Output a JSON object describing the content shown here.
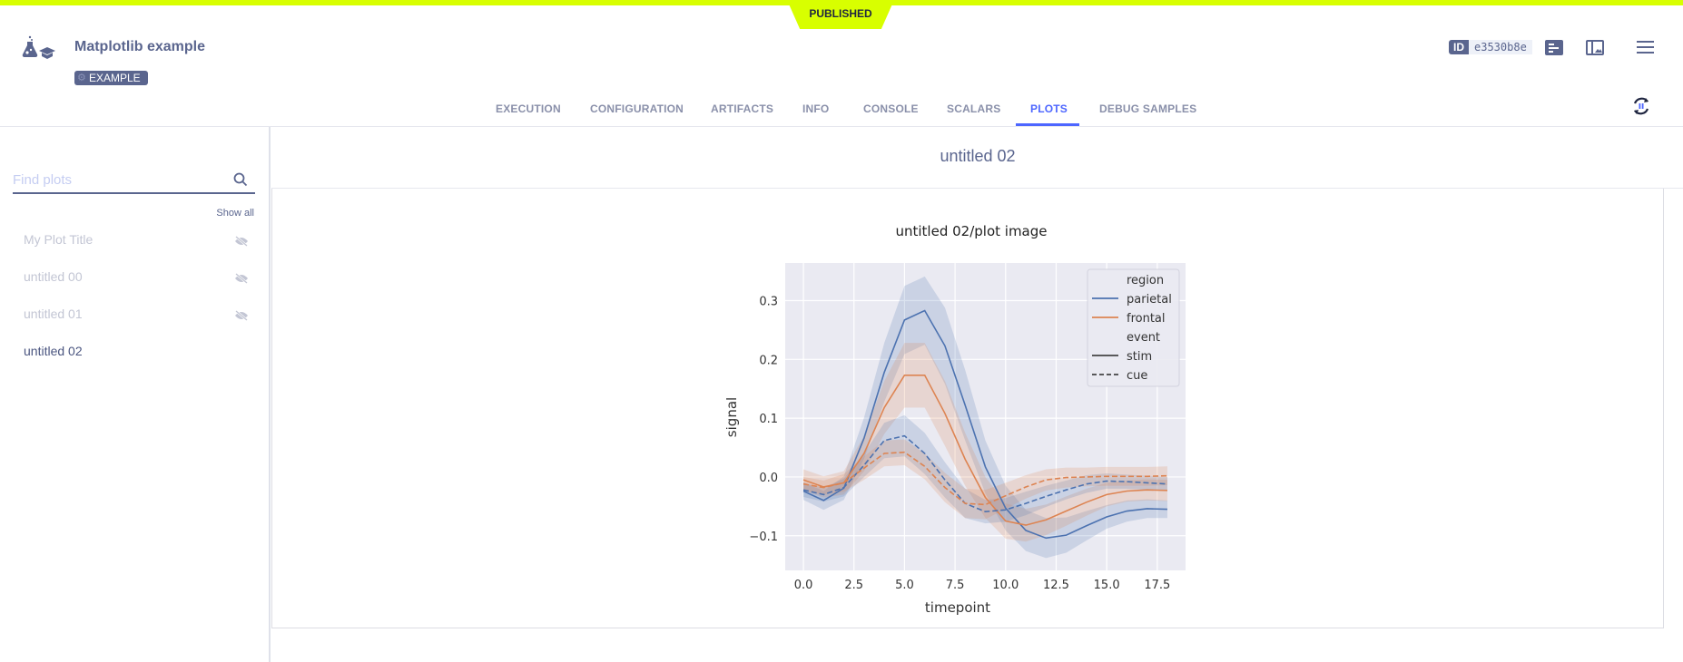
{
  "status_banner": "PUBLISHED",
  "header": {
    "title": "Matplotlib example",
    "badge": "EXAMPLE",
    "id_label": "ID",
    "id_value": "e3530b8e"
  },
  "tabs": [
    {
      "label": "EXECUTION"
    },
    {
      "label": "CONFIGURATION"
    },
    {
      "label": "ARTIFACTS"
    },
    {
      "label": "INFO"
    },
    {
      "label": "CONSOLE"
    },
    {
      "label": "SCALARS"
    },
    {
      "label": "PLOTS",
      "active": true
    },
    {
      "label": "DEBUG SAMPLES"
    }
  ],
  "sidebar": {
    "search_placeholder": "Find plots",
    "show_all": "Show all",
    "items": [
      {
        "label": "My Plot Title",
        "hidden": true
      },
      {
        "label": "untitled 00",
        "hidden": true
      },
      {
        "label": "untitled 01",
        "hidden": true
      },
      {
        "label": "untitled 02",
        "hidden": false
      }
    ]
  },
  "main": {
    "title": "untitled 02",
    "plot_title": "untitled 02/plot image"
  },
  "colors": {
    "accent": "#4d66ff",
    "banner": "#d8ff00",
    "parietal": "#4c72b0",
    "frontal": "#dd8452",
    "plot_bg": "#eaeaf2"
  },
  "chart_data": {
    "type": "line",
    "xlabel": "timepoint",
    "ylabel": "signal",
    "xlim": [
      -0.9,
      18.9
    ],
    "ylim": [
      -0.159,
      0.364
    ],
    "xticks": [
      "0.0",
      "2.5",
      "5.0",
      "7.5",
      "10.0",
      "12.5",
      "15.0",
      "17.5"
    ],
    "yticks": [
      "0.3",
      "0.2",
      "0.1",
      "0.0",
      "−0.1"
    ],
    "grid": true,
    "legend": {
      "placement": "top-right",
      "region_title": "region",
      "event_title": "event",
      "entries": [
        "parietal",
        "frontal",
        "stim",
        "cue"
      ]
    },
    "x": [
      0,
      1,
      2,
      3,
      4,
      5,
      6,
      7,
      8,
      9,
      10,
      11,
      12,
      13,
      14,
      15,
      16,
      17,
      18
    ],
    "series": [
      {
        "name": "parietal",
        "event": "stim",
        "color": "#4c72b0",
        "dashed": false,
        "values": [
          -0.024,
          -0.04,
          -0.019,
          0.066,
          0.178,
          0.267,
          0.283,
          0.223,
          0.122,
          0.017,
          -0.053,
          -0.091,
          -0.104,
          -0.099,
          -0.083,
          -0.068,
          -0.058,
          -0.054,
          -0.055
        ],
        "ci_halfwidth": [
          0.015,
          0.016,
          0.02,
          0.035,
          0.05,
          0.058,
          0.058,
          0.065,
          0.06,
          0.045,
          0.038,
          0.035,
          0.034,
          0.03,
          0.025,
          0.02,
          0.018,
          0.016,
          0.015
        ]
      },
      {
        "name": "frontal",
        "event": "stim",
        "color": "#dd8452",
        "dashed": false,
        "values": [
          -0.005,
          -0.017,
          -0.01,
          0.04,
          0.118,
          0.173,
          0.173,
          0.108,
          0.03,
          -0.035,
          -0.075,
          -0.082,
          -0.073,
          -0.058,
          -0.043,
          -0.03,
          -0.024,
          -0.022,
          -0.023
        ],
        "ci_halfwidth": [
          0.018,
          0.018,
          0.02,
          0.03,
          0.045,
          0.055,
          0.055,
          0.055,
          0.045,
          0.035,
          0.03,
          0.028,
          0.026,
          0.025,
          0.023,
          0.02,
          0.018,
          0.018,
          0.018
        ]
      },
      {
        "name": "parietal",
        "event": "cue",
        "color": "#4c72b0",
        "dashed": true,
        "values": [
          -0.022,
          -0.03,
          -0.018,
          0.02,
          0.062,
          0.07,
          0.04,
          -0.005,
          -0.045,
          -0.059,
          -0.056,
          -0.045,
          -0.033,
          -0.022,
          -0.012,
          -0.007,
          -0.008,
          -0.01,
          -0.012
        ],
        "ci_halfwidth": [
          0.012,
          0.012,
          0.015,
          0.02,
          0.03,
          0.035,
          0.035,
          0.03,
          0.025,
          0.02,
          0.02,
          0.02,
          0.018,
          0.016,
          0.015,
          0.013,
          0.012,
          0.012,
          0.012
        ]
      },
      {
        "name": "frontal",
        "event": "cue",
        "color": "#dd8452",
        "dashed": true,
        "values": [
          -0.012,
          -0.018,
          -0.01,
          0.015,
          0.04,
          0.042,
          0.018,
          -0.018,
          -0.045,
          -0.047,
          -0.032,
          -0.017,
          -0.005,
          -0.001,
          0.0,
          0.001,
          0.001,
          0.001,
          0.002
        ],
        "ci_halfwidth": [
          0.012,
          0.012,
          0.015,
          0.02,
          0.022,
          0.022,
          0.022,
          0.025,
          0.025,
          0.025,
          0.022,
          0.02,
          0.018,
          0.017,
          0.016,
          0.016,
          0.016,
          0.016,
          0.016
        ]
      }
    ]
  }
}
